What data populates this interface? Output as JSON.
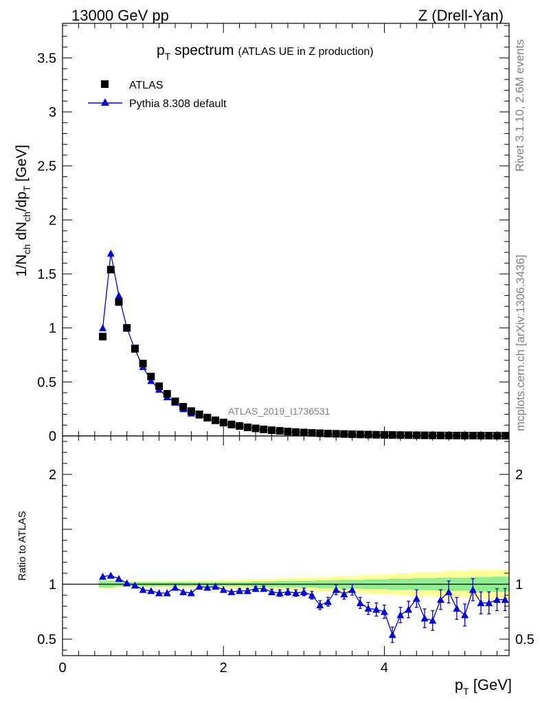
{
  "header": {
    "left": "13000 GeV pp",
    "right": "Z (Drell-Yan)"
  },
  "side_labels": {
    "rivet": "Rivet 3.1.10,  2.6M events",
    "mcplots": "mcplots.cern.ch [arXiv:1306.3436]"
  },
  "chart_data": [
    {
      "type": "scatter",
      "panel": "main",
      "title_main": "p",
      "title_sub": "T",
      "title_rest": " spectrum",
      "title_note": "(ATLAS UE in Z production)",
      "ylabel": "1/N_ch dN_ch/dp_T [GeV]",
      "ylabel_parts": [
        "1/N",
        "ch",
        " dN",
        "ch",
        "/dp",
        "T",
        " [GeV]"
      ],
      "watermark": "ATLAS_2019_I1736531",
      "xlim": [
        0,
        5.55
      ],
      "ylim": [
        0,
        3.82
      ],
      "yticks": [
        0,
        0.5,
        1,
        1.5,
        2,
        2.5,
        3,
        3.5
      ],
      "ytick_labels": [
        "0",
        "0.5",
        "1",
        "1.5",
        "2",
        "2.5",
        "3",
        "3.5"
      ],
      "legend_position": "top-left",
      "legend": [
        "ATLAS",
        "Pythia 8.308 default"
      ],
      "x": [
        0.5,
        0.6,
        0.7,
        0.8,
        0.9,
        1.0,
        1.1,
        1.2,
        1.3,
        1.4,
        1.5,
        1.6,
        1.7,
        1.8,
        1.9,
        2.0,
        2.1,
        2.2,
        2.3,
        2.4,
        2.5,
        2.6,
        2.7,
        2.8,
        2.9,
        3.0,
        3.1,
        3.2,
        3.3,
        3.4,
        3.5,
        3.6,
        3.7,
        3.8,
        3.9,
        4.0,
        4.1,
        4.2,
        4.3,
        4.4,
        4.5,
        4.6,
        4.7,
        4.8,
        4.9,
        5.0,
        5.1,
        5.2,
        5.3,
        5.4,
        5.5
      ],
      "series": [
        {
          "name": "ATLAS",
          "values": [
            0.92,
            1.54,
            1.24,
            1.0,
            0.81,
            0.67,
            0.55,
            0.46,
            0.39,
            0.32,
            0.27,
            0.23,
            0.2,
            0.17,
            0.145,
            0.125,
            0.107,
            0.093,
            0.08,
            0.07,
            0.061,
            0.053,
            0.047,
            0.041,
            0.036,
            0.032,
            0.028,
            0.025,
            0.022,
            0.02,
            0.018,
            0.016,
            0.014,
            0.0125,
            0.011,
            0.01,
            0.009,
            0.008,
            0.0072,
            0.0065,
            0.0058,
            0.0052,
            0.0047,
            0.0042,
            0.0038,
            0.0034,
            0.0031,
            0.0028,
            0.0025,
            0.0023,
            0.0021
          ]
        },
        {
          "name": "Pythia 8.308 default",
          "values": [
            1.0,
            1.69,
            1.3,
            1.0,
            0.8,
            0.64,
            0.51,
            0.43,
            0.36,
            0.31,
            0.25,
            0.21,
            0.19,
            0.165,
            0.14,
            0.118,
            0.1,
            0.088,
            0.076,
            0.067,
            0.058,
            0.05,
            0.044,
            0.038,
            0.034,
            0.03,
            0.026,
            0.022,
            0.019,
            0.019,
            0.017,
            0.015,
            0.012,
            0.01,
            0.009,
            0.0077,
            0.005,
            0.0058,
            0.0055,
            0.0057,
            0.004,
            0.0035,
            0.0038,
            0.0039,
            0.003,
            0.0025,
            0.003,
            0.0023,
            0.0021,
            0.0019,
            0.0018
          ]
        }
      ]
    },
    {
      "type": "scatter",
      "panel": "ratio",
      "ylabel": "Ratio to ATLAS",
      "xlabel_main": "p",
      "xlabel_sub": "T",
      "xlabel_rest": " [GeV]",
      "xlim": [
        0,
        5.55
      ],
      "ylim": [
        0.35,
        2.35
      ],
      "xticks": [
        0,
        2,
        4
      ],
      "xtick_labels": [
        "0",
        "2",
        "4"
      ],
      "yticks": [
        0.5,
        1,
        2
      ],
      "ytick_labels": [
        "0.5",
        "1",
        "2"
      ],
      "x": [
        0.5,
        0.6,
        0.7,
        0.8,
        0.9,
        1.0,
        1.1,
        1.2,
        1.3,
        1.4,
        1.5,
        1.6,
        1.7,
        1.8,
        1.9,
        2.0,
        2.1,
        2.2,
        2.3,
        2.4,
        2.5,
        2.6,
        2.7,
        2.8,
        2.9,
        3.0,
        3.1,
        3.2,
        3.3,
        3.4,
        3.5,
        3.6,
        3.7,
        3.8,
        3.9,
        4.0,
        4.1,
        4.2,
        4.3,
        4.4,
        4.5,
        4.6,
        4.7,
        4.8,
        4.9,
        5.0,
        5.1,
        5.2,
        5.3,
        5.4,
        5.5
      ],
      "ratio": [
        1.07,
        1.08,
        1.05,
        1.01,
        0.99,
        0.95,
        0.94,
        0.92,
        0.92,
        0.97,
        0.93,
        0.92,
        0.98,
        0.97,
        0.98,
        0.95,
        0.93,
        0.94,
        0.94,
        0.96,
        0.96,
        0.93,
        0.92,
        0.93,
        0.92,
        0.93,
        0.9,
        0.81,
        0.84,
        0.95,
        0.91,
        0.95,
        0.83,
        0.78,
        0.77,
        0.75,
        0.54,
        0.72,
        0.77,
        0.87,
        0.69,
        0.67,
        0.86,
        0.93,
        0.78,
        0.72,
        0.95,
        0.83,
        0.83,
        0.86,
        0.86
      ],
      "ratio_err": [
        0.01,
        0.01,
        0.01,
        0.01,
        0.01,
        0.01,
        0.01,
        0.01,
        0.01,
        0.01,
        0.01,
        0.01,
        0.01,
        0.01,
        0.01,
        0.015,
        0.015,
        0.02,
        0.02,
        0.02,
        0.025,
        0.025,
        0.03,
        0.03,
        0.03,
        0.035,
        0.035,
        0.04,
        0.04,
        0.045,
        0.045,
        0.05,
        0.05,
        0.055,
        0.06,
        0.06,
        0.07,
        0.07,
        0.075,
        0.08,
        0.085,
        0.09,
        0.09,
        0.1,
        0.1,
        0.1,
        0.1,
        0.1,
        0.1,
        0.1,
        0.1
      ],
      "band_green": [
        0.03,
        0.03,
        0.02,
        0.02,
        0.02,
        0.02,
        0.02,
        0.02,
        0.02,
        0.02,
        0.02,
        0.02,
        0.02,
        0.02,
        0.02,
        0.02,
        0.02,
        0.02,
        0.02,
        0.025,
        0.025,
        0.025,
        0.03,
        0.03,
        0.03,
        0.03,
        0.03,
        0.035,
        0.035,
        0.035,
        0.04,
        0.04,
        0.04,
        0.045,
        0.045,
        0.045,
        0.05,
        0.05,
        0.05,
        0.055,
        0.055,
        0.055,
        0.06,
        0.06,
        0.06,
        0.06,
        0.065,
        0.065,
        0.065,
        0.07,
        0.07
      ],
      "band_yellow": [
        0.04,
        0.04,
        0.03,
        0.03,
        0.03,
        0.03,
        0.03,
        0.03,
        0.03,
        0.03,
        0.03,
        0.035,
        0.035,
        0.035,
        0.035,
        0.04,
        0.04,
        0.04,
        0.045,
        0.045,
        0.05,
        0.05,
        0.055,
        0.055,
        0.06,
        0.06,
        0.06,
        0.065,
        0.065,
        0.07,
        0.075,
        0.075,
        0.08,
        0.085,
        0.09,
        0.09,
        0.095,
        0.1,
        0.1,
        0.11,
        0.11,
        0.11,
        0.115,
        0.12,
        0.12,
        0.12,
        0.13,
        0.13,
        0.13,
        0.13,
        0.13
      ]
    }
  ],
  "colors": {
    "data_marker": "#000000",
    "mc_line": "#0000cc",
    "mc_marker": "#0000dd",
    "band_inner": "#90ee90",
    "band_outer": "#ffff99",
    "gray_text": "#808080"
  }
}
